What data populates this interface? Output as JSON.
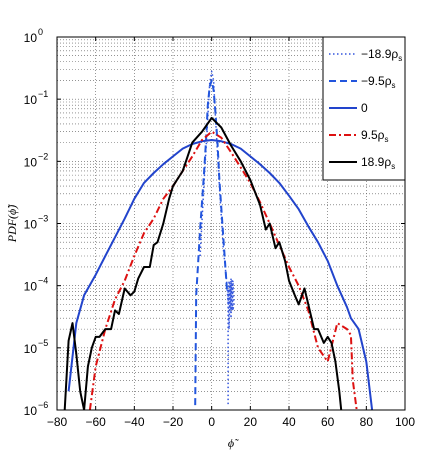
{
  "chart_data": {
    "type": "line",
    "title": "",
    "xlabel": "ϕ̃",
    "ylabel": "PDF(ϕ̃)",
    "x_scale": "linear",
    "y_scale": "log",
    "xlim": [
      -80,
      100
    ],
    "ylim": [
      1e-06,
      1
    ],
    "x_ticks": [
      -80,
      -60,
      -40,
      -20,
      0,
      20,
      40,
      60,
      80,
      100
    ],
    "y_ticks": [
      1e-06,
      1e-05,
      0.0001,
      0.001,
      0.01,
      0.1,
      1
    ],
    "y_tick_labels": [
      {
        "base": "10",
        "exp": "-6"
      },
      {
        "base": "10",
        "exp": "-5"
      },
      {
        "base": "10",
        "exp": "-4"
      },
      {
        "base": "10",
        "exp": "-3"
      },
      {
        "base": "10",
        "exp": "-2"
      },
      {
        "base": "10",
        "exp": "-1"
      },
      {
        "base": "10",
        "exp": "0"
      }
    ],
    "grid": true,
    "minor_grid": true,
    "legend_position": "top-right",
    "series": [
      {
        "name": "−18.9ρs",
        "label_main": "−18.9ρ",
        "label_sub": "s",
        "color": "#3355dd",
        "dash": "1.5,2.5",
        "width": 1.5,
        "x": [
          -6,
          -4,
          -2,
          -1,
          0,
          1,
          2,
          4,
          6,
          8,
          8.5,
          9,
          9.5,
          10,
          10.5,
          11,
          11.5,
          11,
          10.5,
          10,
          9.5,
          9,
          8.5,
          8.5
        ],
        "y": [
          0.0003,
          0.004,
          0.05,
          0.18,
          0.28,
          0.2,
          0.05,
          0.004,
          0.0004,
          0.0001,
          5e-05,
          0.00012,
          4e-05,
          0.00013,
          4e-05,
          0.00012,
          5e-05,
          4e-05,
          0.00012,
          3e-05,
          0.00011,
          2e-05,
          8e-05,
          1.2e-06
        ]
      },
      {
        "name": "−9.5ρs",
        "label_main": "−9.5ρ",
        "label_sub": "s",
        "color": "#2255dd",
        "dash": "7,4",
        "width": 2,
        "x": [
          -8.5,
          -8,
          -6,
          -4,
          -3,
          -2,
          -1,
          0,
          1,
          2,
          3,
          4,
          6,
          8
        ],
        "y": [
          1.2e-06,
          7e-05,
          0.0008,
          0.006,
          0.02,
          0.08,
          0.16,
          0.2,
          0.14,
          0.06,
          0.02,
          0.005,
          0.0006,
          8e-05
        ]
      },
      {
        "name": "0",
        "label_main": "0",
        "label_sub": "",
        "color": "#2244cc",
        "dash": "",
        "width": 2,
        "x": [
          -74,
          -70,
          -66,
          -60,
          -55,
          -50,
          -45,
          -40,
          -35,
          -30,
          -25,
          -20,
          -15,
          -10,
          -5,
          0,
          5,
          10,
          15,
          20,
          25,
          30,
          35,
          40,
          45,
          50,
          55,
          60,
          65,
          70,
          72,
          76,
          80,
          83
        ],
        "y": [
          2e-06,
          2.5e-05,
          7e-05,
          0.00015,
          0.0003,
          0.0006,
          0.0012,
          0.0025,
          0.0045,
          0.0065,
          0.009,
          0.012,
          0.016,
          0.019,
          0.021,
          0.022,
          0.021,
          0.019,
          0.016,
          0.012,
          0.009,
          0.0065,
          0.0045,
          0.0028,
          0.0017,
          0.0009,
          0.0005,
          0.00025,
          0.0001,
          4.5e-05,
          3e-05,
          2e-05,
          6e-06,
          1e-06
        ]
      },
      {
        "name": "9.5ρs",
        "label_main": "9.5ρ",
        "label_sub": "s",
        "color": "#dd1111",
        "dash": "7,3,2,3",
        "width": 2,
        "x": [
          -63,
          -60,
          -55,
          -50,
          -45,
          -40,
          -35,
          -30,
          -25,
          -20,
          -15,
          -10,
          -5,
          0,
          5,
          10,
          15,
          20,
          25,
          30,
          35,
          40,
          45,
          50,
          55,
          60,
          65,
          70,
          72,
          73,
          75
        ],
        "y": [
          1e-06,
          5e-06,
          2e-05,
          6e-05,
          0.00012,
          0.0003,
          0.0007,
          0.0012,
          0.0025,
          0.004,
          0.007,
          0.012,
          0.022,
          0.03,
          0.024,
          0.014,
          0.008,
          0.0045,
          0.0022,
          0.001,
          0.00045,
          0.0002,
          0.0001,
          4e-05,
          1e-05,
          6e-06,
          2.5e-05,
          2e-05,
          1.6e-05,
          3e-06,
          1e-06
        ]
      },
      {
        "name": "18.9ρs",
        "label_main": "18.9ρ",
        "label_sub": "s",
        "color": "#000000",
        "dash": "",
        "width": 2,
        "x": [
          -76,
          -74,
          -72,
          -70,
          -68,
          -66,
          -64,
          -62,
          -60,
          -58,
          -55,
          -52,
          -50,
          -48,
          -45,
          -42,
          -40,
          -38,
          -35,
          -32,
          -30,
          -28,
          -25,
          -22,
          -20,
          -15,
          -10,
          -5,
          0,
          5,
          10,
          15,
          20,
          25,
          28,
          30,
          33,
          35,
          38,
          40,
          43,
          45,
          48,
          50,
          53,
          55,
          58,
          60,
          62,
          64,
          66,
          67
        ],
        "y": [
          1e-06,
          1.3e-05,
          2.5e-05,
          8e-06,
          2e-06,
          1e-06,
          5e-06,
          1e-05,
          1.5e-05,
          1.5e-05,
          2e-05,
          2e-05,
          4e-05,
          3.5e-05,
          9e-05,
          7e-05,
          8e-05,
          0.00013,
          0.0002,
          0.0002,
          0.00045,
          0.0005,
          0.001,
          0.0025,
          0.004,
          0.007,
          0.02,
          0.03,
          0.05,
          0.035,
          0.018,
          0.01,
          0.005,
          0.002,
          0.0008,
          0.001,
          0.0004,
          0.0005,
          0.00025,
          0.00012,
          7e-05,
          5e-05,
          9e-05,
          5e-05,
          2e-05,
          2e-05,
          1.2e-05,
          1.5e-05,
          1.2e-05,
          6e-06,
          2e-06,
          1e-06
        ]
      }
    ]
  }
}
